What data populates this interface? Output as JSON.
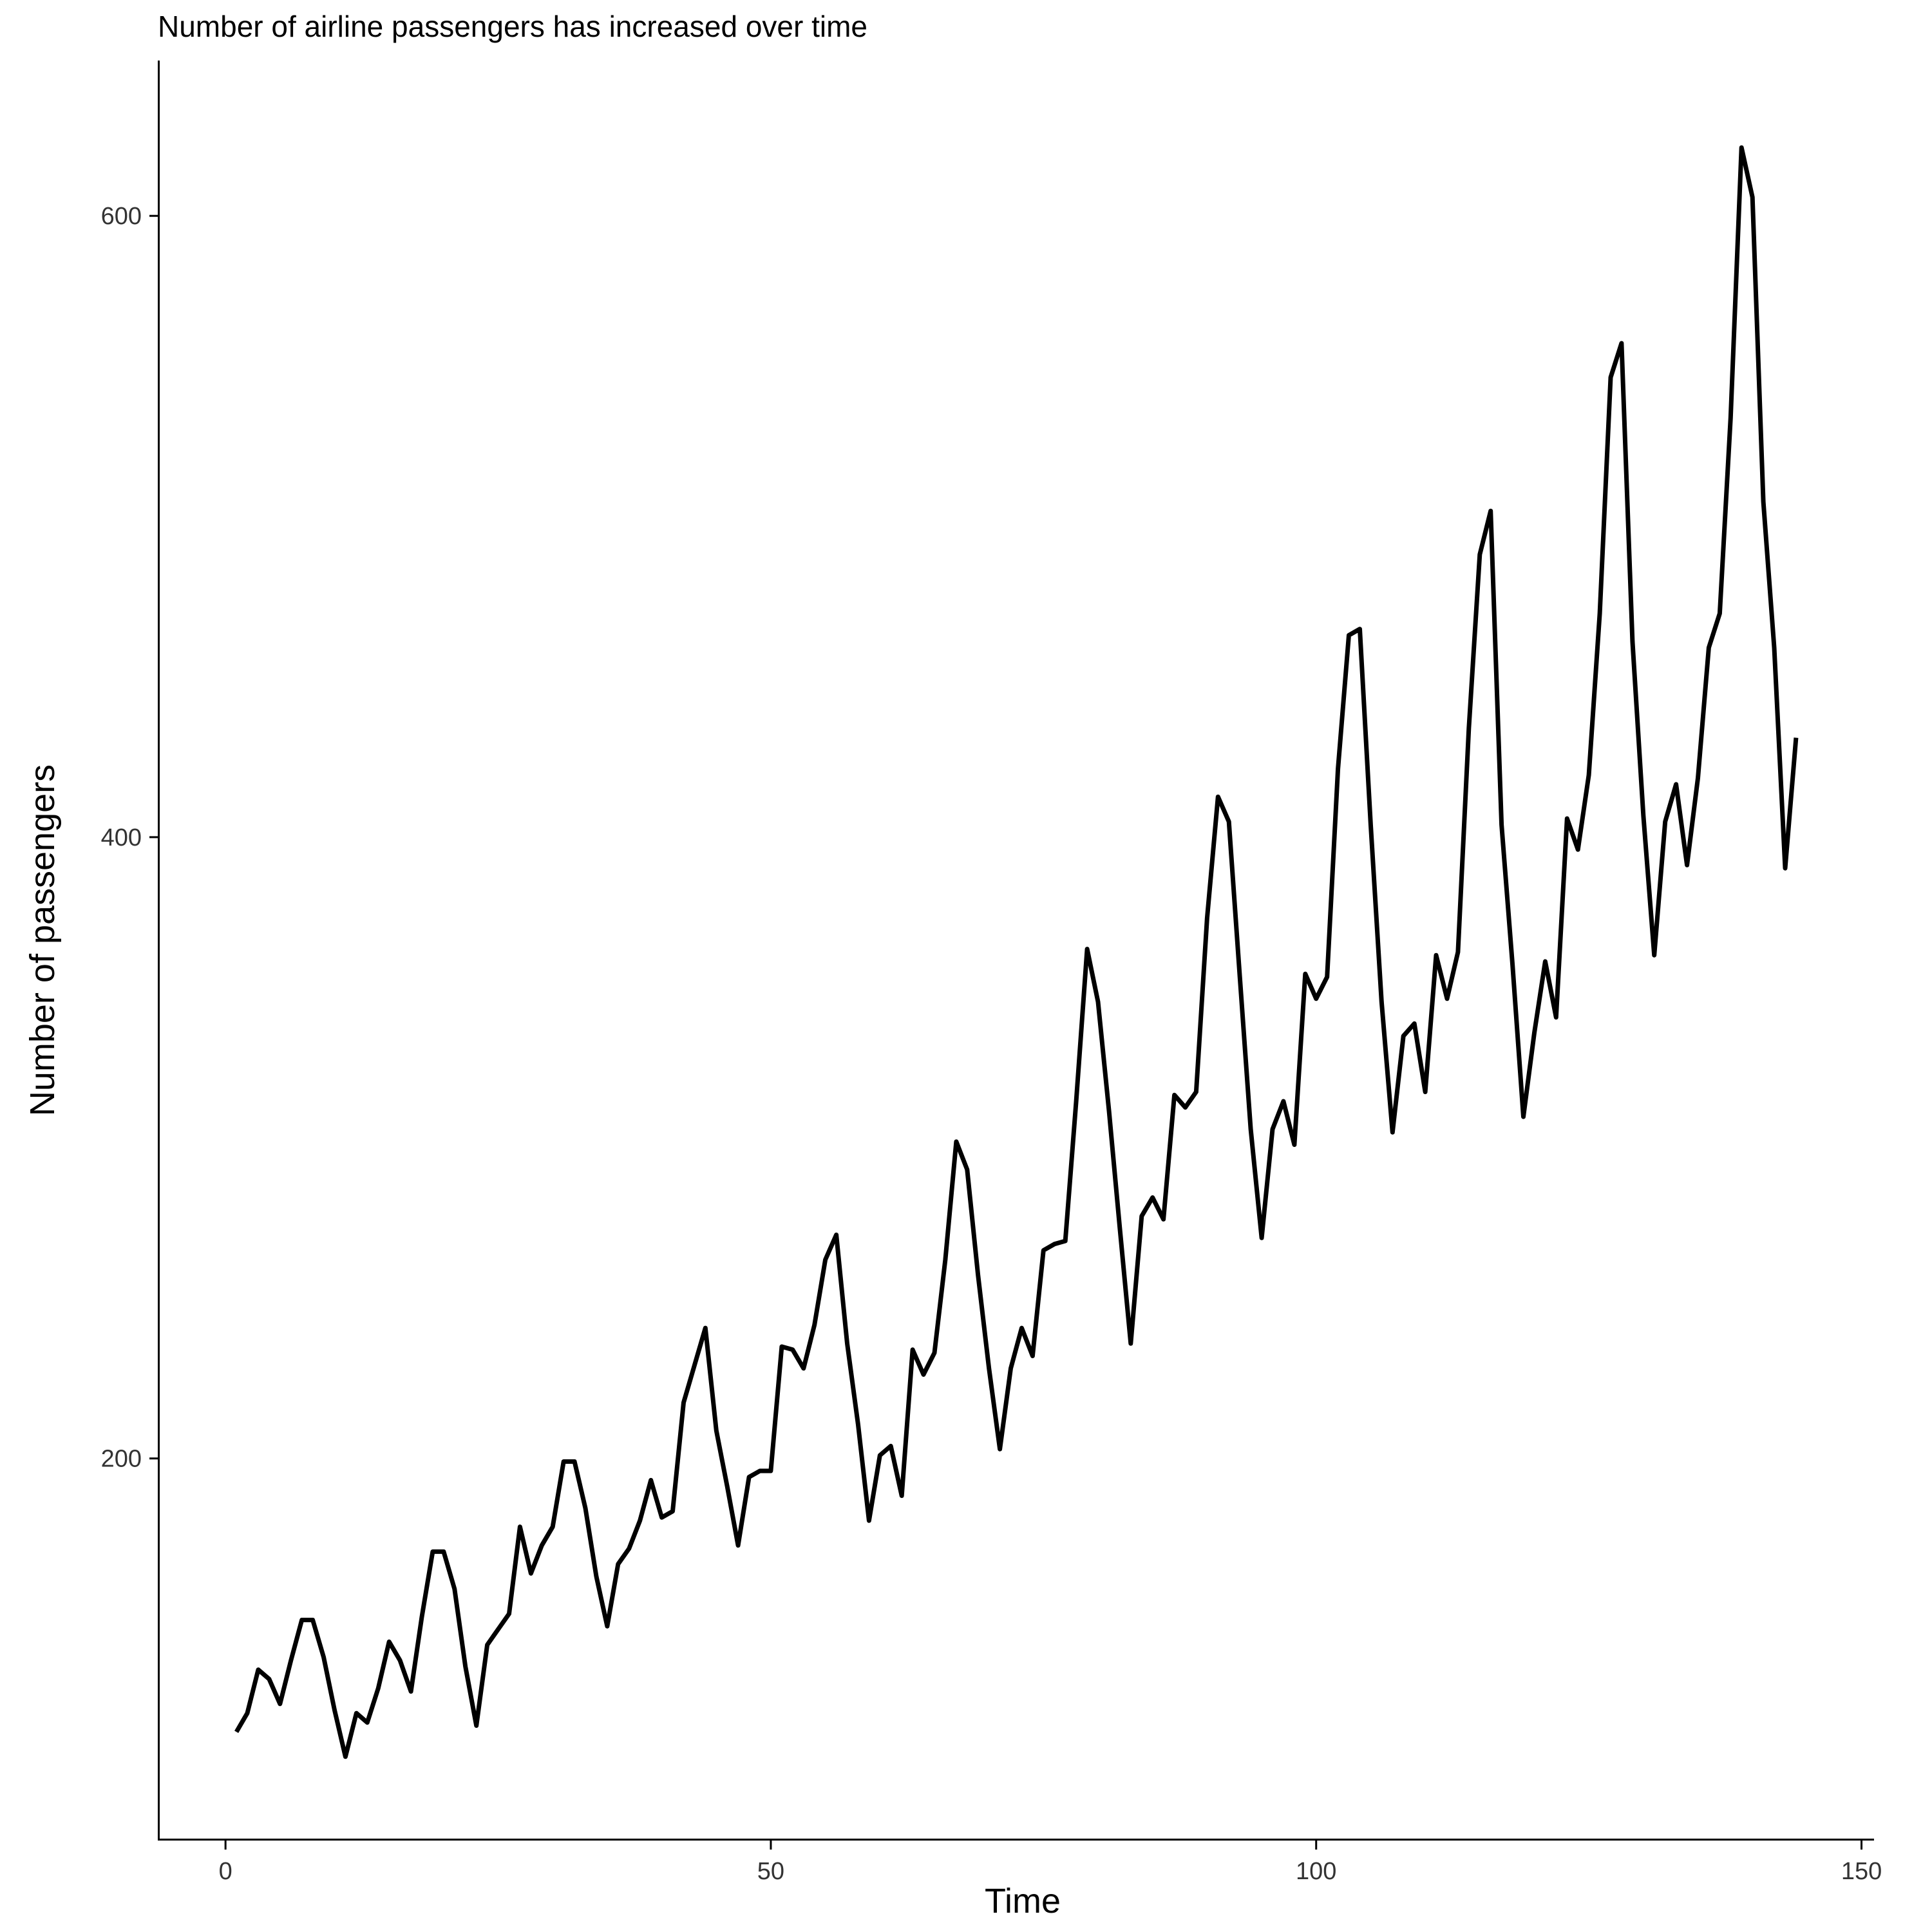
{
  "chart_data": {
    "type": "line",
    "title": "Number of airline passengers has increased over time",
    "xlabel": "Time",
    "ylabel": "Number of passengers",
    "xlim": [
      -6.15,
      151.15
    ],
    "ylim": [
      77,
      650
    ],
    "x_ticks": [
      0,
      50,
      100,
      150
    ],
    "y_ticks": [
      200,
      400,
      600
    ],
    "grid": false,
    "legend": "none",
    "line_color": "#000000",
    "series": [
      {
        "x": [
          1,
          2,
          3,
          4,
          5,
          6,
          7,
          8,
          9,
          10,
          11,
          12,
          13,
          14,
          15,
          16,
          17,
          18,
          19,
          20,
          21,
          22,
          23,
          24,
          25,
          26,
          27,
          28,
          29,
          30,
          31,
          32,
          33,
          34,
          35,
          36,
          37,
          38,
          39,
          40,
          41,
          42,
          43,
          44,
          45,
          46,
          47,
          48,
          49,
          50,
          51,
          52,
          53,
          54,
          55,
          56,
          57,
          58,
          59,
          60,
          61,
          62,
          63,
          64,
          65,
          66,
          67,
          68,
          69,
          70,
          71,
          72,
          73,
          74,
          75,
          76,
          77,
          78,
          79,
          80,
          81,
          82,
          83,
          84,
          85,
          86,
          87,
          88,
          89,
          90,
          91,
          92,
          93,
          94,
          95,
          96,
          97,
          98,
          99,
          100,
          101,
          102,
          103,
          104,
          105,
          106,
          107,
          108,
          109,
          110,
          111,
          112,
          113,
          114,
          115,
          116,
          117,
          118,
          119,
          120,
          121,
          122,
          123,
          124,
          125,
          126,
          127,
          128,
          129,
          130,
          131,
          132,
          133,
          134,
          135,
          136,
          137,
          138,
          139,
          140,
          141,
          142,
          143,
          144
        ],
        "values": [
          112,
          118,
          132,
          129,
          121,
          135,
          148,
          148,
          136,
          119,
          104,
          118,
          115,
          126,
          141,
          135,
          125,
          149,
          170,
          170,
          158,
          133,
          114,
          140,
          145,
          150,
          178,
          163,
          172,
          178,
          199,
          199,
          184,
          162,
          146,
          166,
          171,
          180,
          193,
          181,
          183,
          218,
          230,
          242,
          209,
          191,
          172,
          194,
          196,
          196,
          236,
          235,
          229,
          243,
          264,
          272,
          237,
          211,
          180,
          201,
          204,
          188,
          235,
          227,
          234,
          264,
          302,
          293,
          259,
          229,
          203,
          229,
          242,
          233,
          267,
          269,
          270,
          315,
          364,
          347,
          312,
          274,
          237,
          278,
          284,
          277,
          317,
          313,
          318,
          374,
          413,
          405,
          355,
          306,
          271,
          306,
          315,
          301,
          356,
          348,
          355,
          422,
          465,
          467,
          404,
          347,
          305,
          336,
          340,
          318,
          362,
          348,
          363,
          435,
          491,
          505,
          404,
          359,
          310,
          337,
          360,
          342,
          406,
          396,
          420,
          472,
          548,
          559,
          463,
          407,
          362,
          405,
          417,
          391,
          419,
          461,
          472,
          535,
          622,
          606,
          508,
          461,
          390,
          432
        ]
      }
    ]
  }
}
